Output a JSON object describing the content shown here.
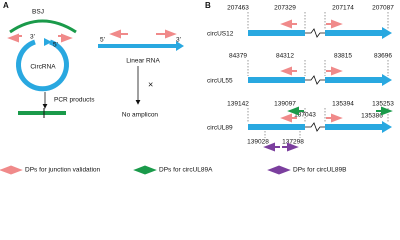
{
  "panel_a": {
    "label": "A",
    "bsj": "BSJ",
    "circ_3": "3'",
    "circ_5": "5'",
    "circ_name": "CircRNA",
    "pcr": "PCR products",
    "lin_5": "5'",
    "lin_3": "3'",
    "lin_name": "Linear RNA",
    "cross": "×",
    "no_amp": "No amplicon"
  },
  "panel_b": {
    "label": "B",
    "rows": [
      {
        "name": "circUS12",
        "coords": [
          "207463",
          "207329",
          "207174",
          "207087"
        ]
      },
      {
        "name": "circUL55",
        "coords": [
          "84379",
          "84312",
          "83815",
          "83696"
        ]
      },
      {
        "name": "circUL89",
        "coords": [
          "139142",
          "139097",
          "135394",
          "135253"
        ],
        "green_coords": [
          "137043",
          "135386"
        ],
        "purple_coords": [
          "139028",
          "137298"
        ]
      }
    ]
  },
  "legend": [
    "DPs for junction validation",
    "DPs for circUL89A",
    "DPs for circUL89B"
  ]
}
